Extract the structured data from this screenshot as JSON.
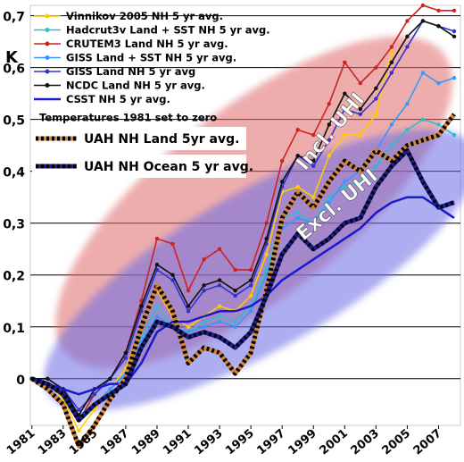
{
  "chart_data": {
    "type": "line",
    "ylabel": "K",
    "ylim": [
      -0.09,
      0.72
    ],
    "xlim": [
      1980.9,
      2008.4
    ],
    "y_ticks": [
      0,
      0.1,
      0.2,
      0.3,
      0.4,
      0.5,
      0.6,
      0.7
    ],
    "y_tick_labels": [
      "0",
      "0,1",
      "0,2",
      "0,3",
      "0,4",
      "0,5",
      "0,6",
      "0,7"
    ],
    "x_tick_labels": [
      "1981",
      "1983",
      "1985",
      "1987",
      "1989",
      "1991",
      "1993",
      "1995",
      "1997",
      "1999",
      "2001",
      "2003",
      "2005",
      "2007"
    ],
    "grid": "horizontal",
    "legend_position": "top-left",
    "note": "Temperatures 1981 set to zero",
    "annotations": [
      {
        "text": "Incl. UHI",
        "color": "#ffffff"
      },
      {
        "text": "Excl. UHI",
        "color": "#ffffff"
      }
    ],
    "x": [
      1981,
      1982,
      1983,
      1984,
      1985,
      1986,
      1987,
      1988,
      1989,
      1990,
      1991,
      1992,
      1993,
      1994,
      1995,
      1996,
      1997,
      1998,
      1999,
      2000,
      2001,
      2002,
      2003,
      2004,
      2005,
      2006,
      2007,
      2008
    ],
    "series": [
      {
        "name": "Vinnikov 2005 NH 5 yr avg.",
        "color": "#ffcc00",
        "style": "solid-marker",
        "values": [
          0.0,
          -0.01,
          -0.04,
          -0.1,
          -0.06,
          -0.02,
          0.02,
          0.1,
          0.17,
          0.12,
          0.1,
          0.12,
          0.14,
          0.13,
          0.16,
          0.24,
          0.36,
          0.37,
          0.35,
          0.43,
          0.47,
          0.47,
          0.51,
          0.63,
          null,
          null,
          null,
          null
        ]
      },
      {
        "name": "Hadcrut3v Land + SST NH 5 yr avg.",
        "color": "#33bbcc",
        "style": "solid-marker",
        "values": [
          0.0,
          -0.01,
          -0.03,
          -0.08,
          -0.05,
          -0.02,
          0.01,
          0.08,
          0.14,
          0.1,
          0.09,
          0.11,
          0.12,
          0.11,
          0.14,
          0.21,
          0.31,
          0.32,
          0.3,
          0.35,
          0.37,
          0.38,
          0.41,
          0.45,
          0.48,
          0.5,
          0.49,
          0.47
        ]
      },
      {
        "name": "CRUTEM3 Land NH 5 yr avg.",
        "color": "#cc2222",
        "style": "solid-marker",
        "values": [
          0.0,
          0.0,
          -0.02,
          -0.08,
          -0.03,
          0.0,
          0.05,
          0.15,
          0.27,
          0.26,
          0.17,
          0.23,
          0.25,
          0.21,
          0.21,
          0.3,
          0.42,
          0.48,
          0.47,
          0.53,
          0.61,
          0.57,
          0.6,
          0.64,
          0.69,
          0.72,
          0.71,
          0.71
        ]
      },
      {
        "name": "GISS Land + SST NH 5 yr avg.",
        "color": "#3399ff",
        "style": "solid-marker",
        "values": [
          0.0,
          -0.01,
          -0.03,
          -0.07,
          -0.05,
          -0.02,
          0.01,
          0.07,
          0.12,
          0.1,
          0.09,
          0.1,
          0.11,
          0.1,
          0.13,
          0.2,
          0.29,
          0.31,
          0.3,
          0.34,
          0.38,
          0.4,
          0.44,
          0.49,
          0.53,
          0.59,
          0.57,
          0.58
        ]
      },
      {
        "name": "GISS Land NH 5 yr avg",
        "color": "#3333cc",
        "style": "solid-marker",
        "values": [
          0.0,
          -0.01,
          -0.02,
          -0.06,
          -0.03,
          0.0,
          0.04,
          0.13,
          0.21,
          0.19,
          0.13,
          0.17,
          0.18,
          0.16,
          0.18,
          0.26,
          0.37,
          0.43,
          0.41,
          0.46,
          0.52,
          0.51,
          0.54,
          0.59,
          0.64,
          0.69,
          0.68,
          0.67
        ]
      },
      {
        "name": "NCDC Land NH 5 yr avg.",
        "color": "#111111",
        "style": "solid-marker",
        "values": [
          0.0,
          0.0,
          -0.02,
          -0.07,
          -0.02,
          0.0,
          0.05,
          0.14,
          0.22,
          0.2,
          0.14,
          0.18,
          0.19,
          0.17,
          0.19,
          0.27,
          0.38,
          0.43,
          0.42,
          0.49,
          0.55,
          0.52,
          0.56,
          0.61,
          0.66,
          0.69,
          0.68,
          0.66
        ]
      },
      {
        "name": "CSST NH 5 yr avg.",
        "color": "#1a1acc",
        "style": "solid",
        "values": [
          0.0,
          -0.01,
          -0.02,
          -0.03,
          -0.02,
          -0.01,
          -0.01,
          0.03,
          0.09,
          0.11,
          0.11,
          0.12,
          0.13,
          0.13,
          0.14,
          0.16,
          0.19,
          0.21,
          0.23,
          0.25,
          0.27,
          0.29,
          0.32,
          0.34,
          0.35,
          0.35,
          0.33,
          0.31
        ]
      },
      {
        "name": "UAH NH Land 5yr avg.",
        "color": "#d9822b",
        "style": "dotted-thick",
        "values": [
          0.0,
          -0.02,
          -0.05,
          -0.13,
          -0.09,
          -0.04,
          0.0,
          0.1,
          0.18,
          0.13,
          0.03,
          0.06,
          0.05,
          0.01,
          0.05,
          0.17,
          0.31,
          0.36,
          0.33,
          0.38,
          0.42,
          0.4,
          0.44,
          0.42,
          0.45,
          0.46,
          0.47,
          0.51
        ]
      },
      {
        "name": "UAH NH Ocean 5 yr avg.",
        "color": "#1a1a99",
        "style": "dotted-thick",
        "values": [
          0.0,
          -0.01,
          -0.03,
          -0.08,
          -0.05,
          -0.03,
          -0.01,
          0.06,
          0.11,
          0.1,
          0.08,
          0.09,
          0.08,
          0.06,
          0.09,
          0.16,
          0.24,
          0.28,
          0.25,
          0.27,
          0.3,
          0.31,
          0.37,
          0.41,
          0.44,
          0.38,
          0.33,
          0.34
        ]
      }
    ]
  }
}
